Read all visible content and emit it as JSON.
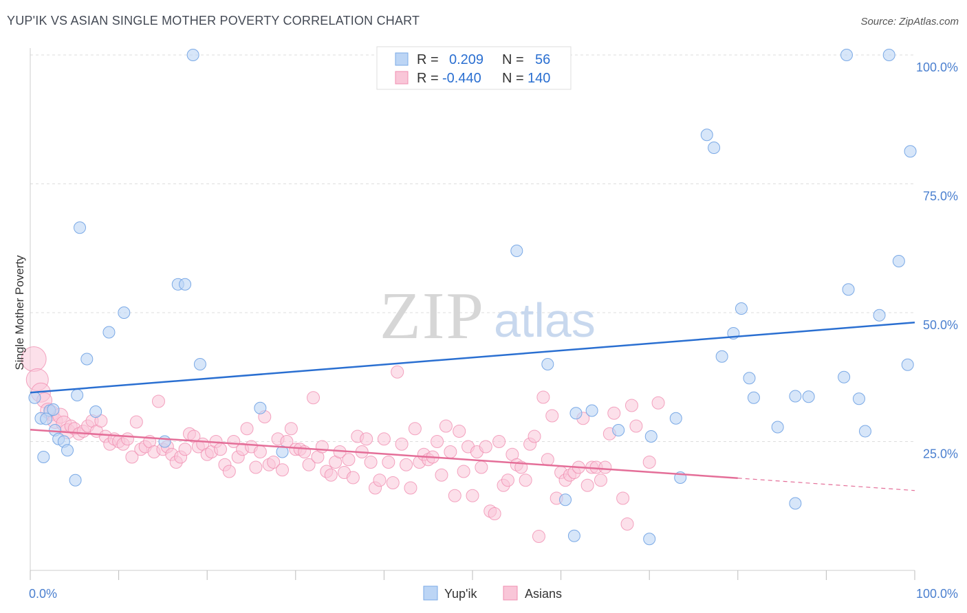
{
  "title": "YUP'IK VS ASIAN SINGLE MOTHER POVERTY CORRELATION CHART",
  "source": "Source: ZipAtlas.com",
  "watermark": {
    "zip": "ZIP",
    "atlas": "atlas"
  },
  "colors": {
    "blue": "#7aa9e6",
    "blue_fill": "#bcd5f5",
    "blue_line": "#2a6fd1",
    "pink": "#f08db0",
    "pink_fill": "#f9c6d8",
    "pink_line": "#e46e98",
    "axis_text": "#4a7fcf",
    "grid": "#dddddd"
  },
  "legend": {
    "rows": [
      {
        "r_label": "R =",
        "r_value": "0.209",
        "n_label": "N =",
        "n_value": "56"
      },
      {
        "r_label": "R =",
        "r_value": "-0.440",
        "n_label": "N =",
        "n_value": "140"
      }
    ]
  },
  "bottom_legend": [
    "Yup'ik",
    "Asians"
  ],
  "chart_data": {
    "type": "scatter",
    "title": "YUP'IK VS ASIAN SINGLE MOTHER POVERTY CORRELATION CHART",
    "xlabel": "",
    "ylabel": "Single Mother Poverty",
    "xlim": [
      0,
      100
    ],
    "ylim": [
      0,
      100
    ],
    "x_tick_labels": [
      "0.0%",
      "100.0%"
    ],
    "y_tick_labels": [
      "25.0%",
      "50.0%",
      "75.0%",
      "100.0%"
    ],
    "y_ticks": [
      25,
      50,
      75,
      100
    ],
    "grid": true,
    "series": [
      {
        "name": "Yup'ik",
        "trend": {
          "x0": 0,
          "y0": 34.5,
          "x1": 100,
          "y1": 48.1
        },
        "points": [
          [
            1.2,
            29.5
          ],
          [
            1.5,
            22
          ],
          [
            2.2,
            31
          ],
          [
            1.8,
            29.4
          ],
          [
            2.8,
            27.2
          ],
          [
            3.2,
            25.5
          ],
          [
            3.8,
            25
          ],
          [
            4.2,
            23.3
          ],
          [
            5.1,
            17.5
          ],
          [
            5.3,
            34
          ],
          [
            5.6,
            66.5
          ],
          [
            6.4,
            41
          ],
          [
            7.4,
            30.8
          ],
          [
            8.9,
            46.2
          ],
          [
            10.6,
            50
          ],
          [
            15.2,
            25
          ],
          [
            16.7,
            55.5
          ],
          [
            17.5,
            55.5
          ],
          [
            18.4,
            100
          ],
          [
            19.2,
            40
          ],
          [
            26,
            31.5
          ],
          [
            28.5,
            23
          ],
          [
            55,
            62
          ],
          [
            58.5,
            40
          ],
          [
            60.5,
            13.7
          ],
          [
            61.7,
            30.5
          ],
          [
            61.5,
            6.7
          ],
          [
            63.5,
            31
          ],
          [
            66.5,
            27.2
          ],
          [
            70,
            6.1
          ],
          [
            70.2,
            26
          ],
          [
            73,
            29.5
          ],
          [
            73.5,
            18
          ],
          [
            76.5,
            84.5
          ],
          [
            77.3,
            82
          ],
          [
            78.2,
            41.5
          ],
          [
            79.5,
            46
          ],
          [
            80.4,
            50.8
          ],
          [
            81.3,
            37.3
          ],
          [
            81.8,
            33.5
          ],
          [
            84.5,
            27.8
          ],
          [
            86.5,
            33.8
          ],
          [
            86.5,
            13
          ],
          [
            88,
            33.7
          ],
          [
            92,
            37.5
          ],
          [
            92.5,
            54.5
          ],
          [
            92.3,
            100
          ],
          [
            93.7,
            33.3
          ],
          [
            94.4,
            27
          ],
          [
            96,
            49.5
          ],
          [
            97.1,
            100
          ],
          [
            98.2,
            60
          ],
          [
            99.2,
            39.9
          ],
          [
            99.5,
            81.3
          ],
          [
            0.5,
            33.5
          ],
          [
            2.6,
            31.2
          ]
        ]
      },
      {
        "name": "Asians",
        "trend": {
          "x0": 0,
          "y0": 27.3,
          "x1": 80,
          "y1": 17.9,
          "dash_to_x": 100,
          "dash_to_y": 15.5
        },
        "points": [
          [
            0.4,
            41
          ],
          [
            0.8,
            37
          ],
          [
            1.2,
            34.5
          ],
          [
            1.6,
            33
          ],
          [
            2,
            31
          ],
          [
            2.4,
            30.5
          ],
          [
            2.8,
            29
          ],
          [
            3.4,
            30
          ],
          [
            3.8,
            28.5
          ],
          [
            4.2,
            27
          ],
          [
            4.6,
            28
          ],
          [
            5,
            27.5
          ],
          [
            5.5,
            26.5
          ],
          [
            6,
            27
          ],
          [
            6.5,
            28
          ],
          [
            7,
            29
          ],
          [
            7.5,
            27
          ],
          [
            8,
            29
          ],
          [
            8.5,
            26
          ],
          [
            9,
            24.5
          ],
          [
            9.5,
            25.5
          ],
          [
            10,
            25
          ],
          [
            10.5,
            24.5
          ],
          [
            11,
            25.5
          ],
          [
            11.5,
            22
          ],
          [
            12,
            28.8
          ],
          [
            12.5,
            23.5
          ],
          [
            13,
            24
          ],
          [
            13.5,
            25
          ],
          [
            14,
            23
          ],
          [
            14.5,
            32.8
          ],
          [
            15,
            23.5
          ],
          [
            15.5,
            24
          ],
          [
            16,
            22.5
          ],
          [
            16.5,
            21
          ],
          [
            17,
            22
          ],
          [
            17.5,
            23.5
          ],
          [
            18,
            26.5
          ],
          [
            18.5,
            26
          ],
          [
            19,
            24
          ],
          [
            19.5,
            24.5
          ],
          [
            20,
            22.5
          ],
          [
            20.5,
            23
          ],
          [
            21,
            25
          ],
          [
            21.5,
            23.5
          ],
          [
            22,
            20.5
          ],
          [
            22.5,
            19.2
          ],
          [
            23,
            25
          ],
          [
            23.5,
            22
          ],
          [
            24,
            23.5
          ],
          [
            24.5,
            27.5
          ],
          [
            25,
            24
          ],
          [
            25.5,
            20
          ],
          [
            26,
            23
          ],
          [
            26.5,
            29.8
          ],
          [
            27,
            20.5
          ],
          [
            27.5,
            21
          ],
          [
            28,
            25.5
          ],
          [
            28.5,
            19.5
          ],
          [
            29,
            25
          ],
          [
            29.5,
            27.5
          ],
          [
            30,
            23.5
          ],
          [
            30.5,
            23.5
          ],
          [
            31,
            23
          ],
          [
            31.5,
            20.5
          ],
          [
            32,
            33.5
          ],
          [
            32.5,
            22
          ],
          [
            33,
            24
          ],
          [
            33.5,
            19.2
          ],
          [
            34,
            18.5
          ],
          [
            34.5,
            21
          ],
          [
            35,
            23
          ],
          [
            35.5,
            19
          ],
          [
            36,
            21.5
          ],
          [
            36.5,
            18
          ],
          [
            37,
            26
          ],
          [
            37.5,
            23
          ],
          [
            38,
            25.5
          ],
          [
            38.5,
            21
          ],
          [
            39,
            16
          ],
          [
            39.5,
            17.5
          ],
          [
            40,
            25.5
          ],
          [
            40.5,
            21
          ],
          [
            41,
            17
          ],
          [
            41.5,
            38.5
          ],
          [
            42,
            24.5
          ],
          [
            42.5,
            20.5
          ],
          [
            43,
            16
          ],
          [
            43.5,
            27.5
          ],
          [
            44,
            21
          ],
          [
            44.5,
            22.5
          ],
          [
            45,
            21.5
          ],
          [
            45.5,
            22
          ],
          [
            46,
            25
          ],
          [
            46.5,
            18.5
          ],
          [
            47,
            28
          ],
          [
            47.5,
            23
          ],
          [
            48,
            14.5
          ],
          [
            48.5,
            27
          ],
          [
            49,
            19.2
          ],
          [
            49.5,
            24
          ],
          [
            50,
            14.5
          ],
          [
            50.5,
            23
          ],
          [
            51,
            20
          ],
          [
            51.5,
            24
          ],
          [
            52,
            11.5
          ],
          [
            52.5,
            11
          ],
          [
            53,
            25
          ],
          [
            53.5,
            16.5
          ],
          [
            54,
            17.5
          ],
          [
            54.5,
            22.5
          ],
          [
            55,
            20.5
          ],
          [
            55.5,
            20
          ],
          [
            56,
            17.5
          ],
          [
            56.5,
            24.5
          ],
          [
            57,
            26
          ],
          [
            57.5,
            6.6
          ],
          [
            58,
            33.6
          ],
          [
            58.5,
            21.5
          ],
          [
            59,
            30
          ],
          [
            59.5,
            14
          ],
          [
            60,
            19
          ],
          [
            60.5,
            17.5
          ],
          [
            61,
            18.5
          ],
          [
            61.5,
            19
          ],
          [
            62,
            20
          ],
          [
            62.5,
            29.5
          ],
          [
            63,
            16.5
          ],
          [
            63.5,
            20
          ],
          [
            64,
            20
          ],
          [
            64.5,
            17.5
          ],
          [
            65,
            20
          ],
          [
            65.5,
            26.5
          ],
          [
            66,
            30.5
          ],
          [
            67,
            14
          ],
          [
            67.5,
            9
          ],
          [
            68,
            32
          ],
          [
            68.5,
            28
          ],
          [
            70,
            21
          ],
          [
            71,
            32.5
          ]
        ]
      }
    ]
  }
}
